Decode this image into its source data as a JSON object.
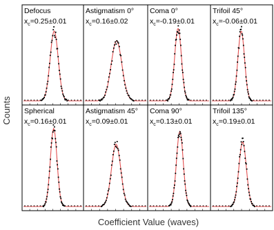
{
  "figure": {
    "ylabel": "Counts",
    "xlabel": "Coefficient Value (waves)"
  },
  "colors": {
    "frame": "#000000",
    "fit_curve": "#e35050",
    "data_points": "#000000"
  },
  "chart_data": {
    "type": "scatter",
    "layout": "2x4 grid of histograms with Gaussian fits",
    "ylabel": "Counts",
    "xlabel": "Coefficient Value (waves)",
    "grid": false,
    "panels": [
      {
        "name": "Defocus",
        "xc_label": "x",
        "xc_sub": "c",
        "xc_text": "=0.25±0.01",
        "center": 0.25,
        "uncertainty": 0.01,
        "sigma": 0.55,
        "peak": 1.0
      },
      {
        "name": "Astigmatism 0°",
        "xc_label": "x",
        "xc_sub": "c",
        "xc_text": "=0.16±0.02",
        "center": 0.16,
        "uncertainty": 0.02,
        "sigma": 0.7,
        "peak": 0.82
      },
      {
        "name": "Coma 0°",
        "xc_label": "x",
        "xc_sub": "c",
        "xc_text": "=-0.19±0.01",
        "center": -0.19,
        "uncertainty": 0.01,
        "sigma": 0.45,
        "peak": 1.05
      },
      {
        "name": "Trifoil 45°",
        "xc_label": "x",
        "xc_sub": "c",
        "xc_text": "=-0.06±0.01",
        "center": -0.06,
        "uncertainty": 0.01,
        "sigma": 0.45,
        "peak": 1.0
      },
      {
        "name": "Spherical",
        "xc_label": "x",
        "xc_sub": "c",
        "xc_text": "=0.16±0.01",
        "center": 0.16,
        "uncertainty": 0.01,
        "sigma": 0.45,
        "peak": 1.05
      },
      {
        "name": "Astigmatism 45°",
        "xc_label": "x",
        "xc_sub": "c",
        "xc_text": "=0.09±0.01",
        "center": 0.09,
        "uncertainty": 0.01,
        "sigma": 0.6,
        "peak": 0.78
      },
      {
        "name": "Coma 90°",
        "xc_label": "x",
        "xc_sub": "c",
        "xc_text": "=0.13±0.01",
        "center": 0.13,
        "uncertainty": 0.01,
        "sigma": 0.45,
        "peak": 1.0
      },
      {
        "name": "Trifoil 135°",
        "xc_label": "x",
        "xc_sub": "c",
        "xc_text": "=0.19±0.01",
        "center": 0.19,
        "uncertainty": 0.01,
        "sigma": 0.5,
        "peak": 0.82
      }
    ]
  }
}
